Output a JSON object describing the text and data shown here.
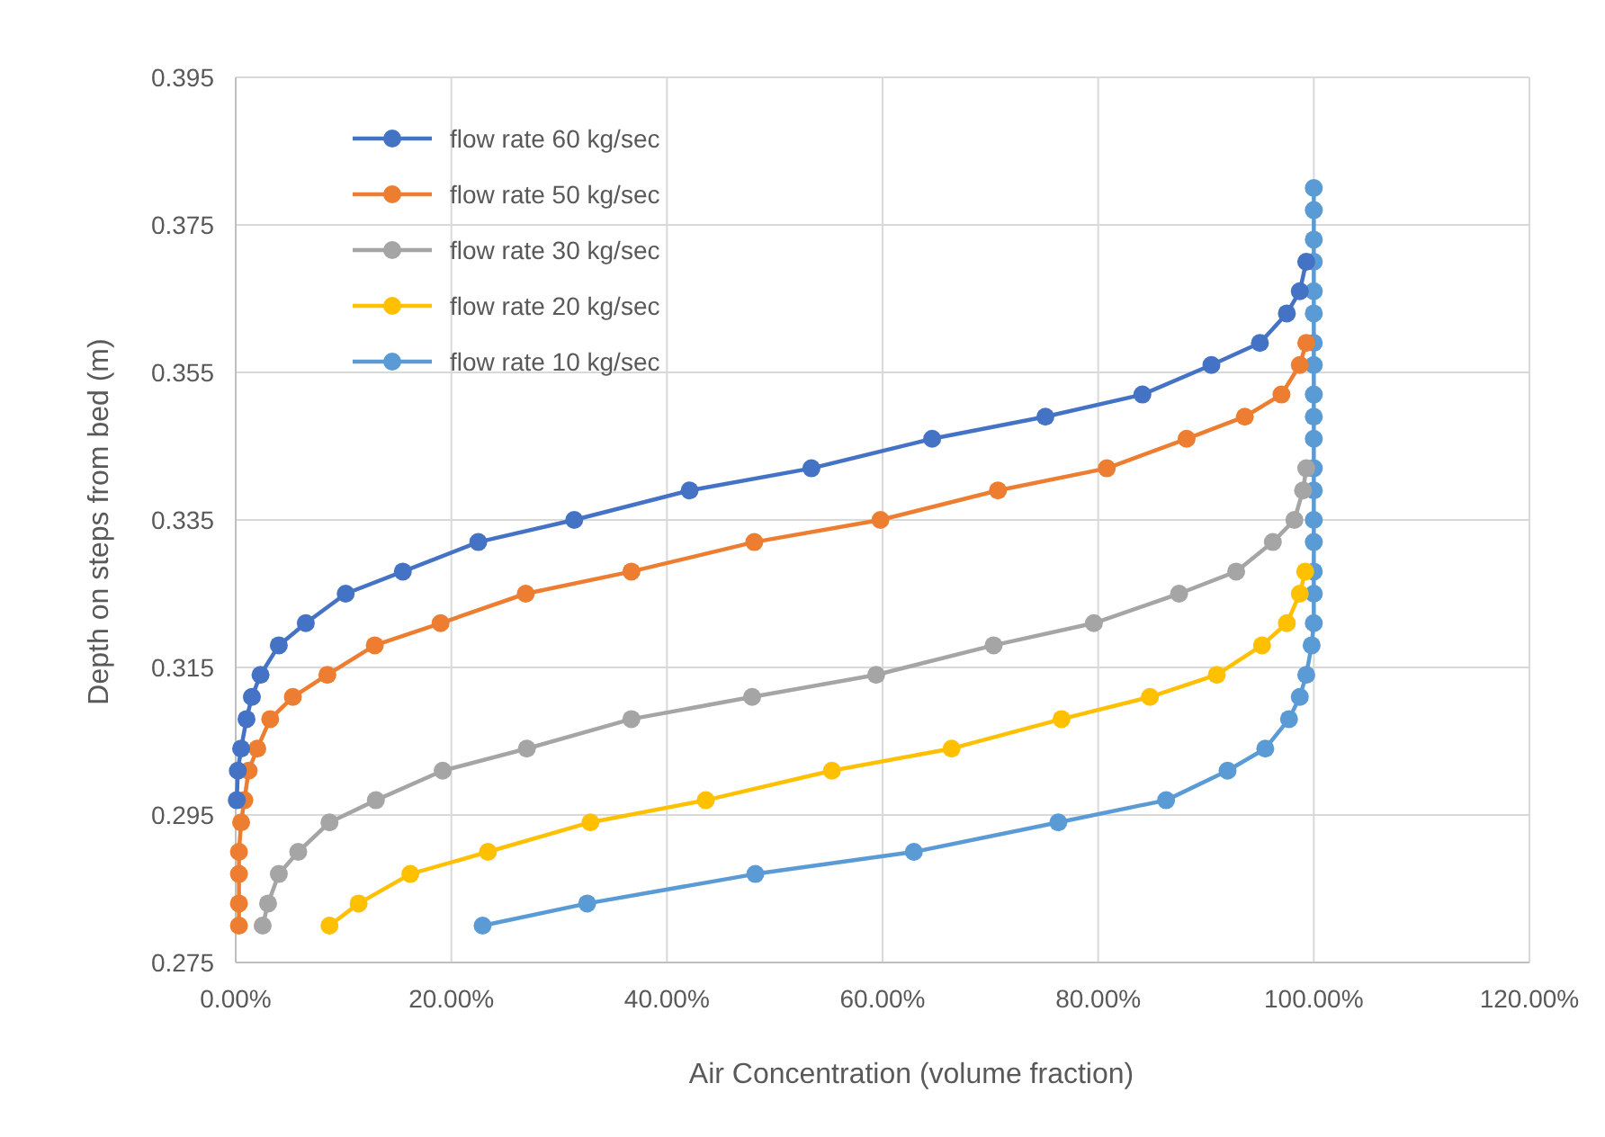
{
  "chart_data": {
    "type": "line",
    "xlabel": "Air Concentration  (volume fraction)",
    "ylabel": "Depth on steps from bed (m)",
    "xlim": [
      0,
      120
    ],
    "xticks": [
      {
        "value": 0,
        "label": "0.00%"
      },
      {
        "value": 20,
        "label": "20.00%"
      },
      {
        "value": 40,
        "label": "40.00%"
      },
      {
        "value": 60,
        "label": "60.00%"
      },
      {
        "value": 80,
        "label": "80.00%"
      },
      {
        "value": 100,
        "label": "100.00%"
      },
      {
        "value": 120,
        "label": "120.00%"
      }
    ],
    "ylim": [
      0.275,
      0.395
    ],
    "yticks": [
      0.275,
      0.295,
      0.315,
      0.335,
      0.355,
      0.375,
      0.395
    ],
    "grid": true,
    "legend": "top left",
    "marker": "circle",
    "line_style": "solid",
    "series": [
      {
        "name": "flow rate 60 kg/sec",
        "color": "#4472c4",
        "x": [
          0.1,
          0.2,
          0.5,
          1.0,
          1.5,
          2.3,
          4.0,
          6.5,
          10.2,
          15.5,
          22.5,
          31.4,
          42.1,
          53.4,
          64.6,
          75.1,
          84.1,
          90.5,
          95.0,
          97.5,
          98.7,
          99.3
        ],
        "values": [
          0.297,
          0.301,
          0.304,
          0.308,
          0.311,
          0.314,
          0.318,
          0.321,
          0.325,
          0.328,
          0.332,
          0.335,
          0.339,
          0.342,
          0.346,
          0.349,
          0.352,
          0.356,
          0.359,
          0.363,
          0.366,
          0.37
        ]
      },
      {
        "name": "flow rate 50 kg/sec",
        "color": "#ed7d31",
        "x": [
          0.3,
          0.3,
          0.3,
          0.3,
          0.5,
          0.8,
          1.2,
          2.0,
          3.2,
          5.3,
          8.5,
          12.9,
          19.0,
          26.9,
          36.7,
          48.1,
          59.8,
          70.7,
          80.8,
          88.2,
          93.6,
          97.0,
          98.7,
          99.3
        ],
        "values": [
          0.28,
          0.283,
          0.287,
          0.29,
          0.294,
          0.297,
          0.301,
          0.304,
          0.308,
          0.311,
          0.314,
          0.318,
          0.321,
          0.325,
          0.328,
          0.332,
          0.335,
          0.339,
          0.342,
          0.346,
          0.349,
          0.352,
          0.356,
          0.359
        ]
      },
      {
        "name": "flow rate 30 kg/sec",
        "color": "#a5a5a5",
        "x": [
          2.5,
          3.0,
          4.0,
          5.8,
          8.7,
          13.0,
          19.2,
          27.0,
          36.7,
          47.9,
          59.4,
          70.3,
          79.6,
          87.5,
          92.8,
          96.2,
          98.2,
          99.0,
          99.3
        ],
        "values": [
          0.28,
          0.283,
          0.287,
          0.29,
          0.294,
          0.297,
          0.301,
          0.304,
          0.308,
          0.311,
          0.314,
          0.318,
          0.321,
          0.325,
          0.328,
          0.332,
          0.335,
          0.339,
          0.342
        ]
      },
      {
        "name": "flow rate 20 kg/sec",
        "color": "#ffc000",
        "x": [
          8.7,
          11.4,
          16.2,
          23.4,
          32.9,
          43.6,
          55.3,
          66.4,
          76.6,
          84.8,
          91.0,
          95.2,
          97.5,
          98.7,
          99.2
        ],
        "values": [
          0.28,
          0.283,
          0.287,
          0.29,
          0.294,
          0.297,
          0.301,
          0.304,
          0.308,
          0.311,
          0.314,
          0.318,
          0.321,
          0.325,
          0.328
        ]
      },
      {
        "name": "flow rate 10 kg/sec",
        "color": "#5b9bd5",
        "x": [
          22.9,
          32.6,
          48.2,
          62.9,
          76.3,
          86.3,
          92.0,
          95.5,
          97.7,
          98.7,
          99.3,
          99.8,
          100,
          100,
          100,
          100,
          100,
          100,
          100,
          100,
          100,
          100,
          100,
          100,
          100,
          100,
          100,
          100,
          100,
          100
        ],
        "values": [
          0.28,
          0.283,
          0.287,
          0.29,
          0.294,
          0.297,
          0.301,
          0.304,
          0.308,
          0.311,
          0.314,
          0.318,
          0.321,
          0.325,
          0.328,
          0.332,
          0.335,
          0.339,
          0.342,
          0.346,
          0.349,
          0.352,
          0.356,
          0.359,
          0.363,
          0.366,
          0.37,
          0.373,
          0.377,
          0.38
        ]
      }
    ]
  }
}
